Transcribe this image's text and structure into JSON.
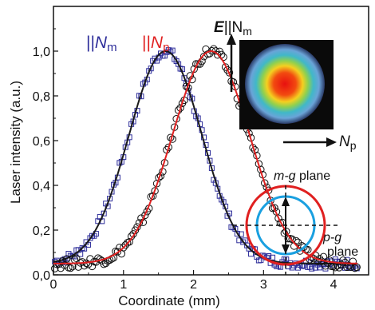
{
  "chart_data": {
    "type": "scatter",
    "xlabel": "Coordinate (mm)",
    "ylabel": "Laser intensity (a.u.)",
    "xlim": [
      0,
      4.5
    ],
    "ylim": [
      0,
      1.2
    ],
    "xticks": [
      "0",
      "1",
      "2",
      "3",
      "4"
    ],
    "yticks": [
      "0,0",
      "0,2",
      "0,4",
      "0,6",
      "0,8",
      "1,0"
    ],
    "grid": false,
    "series": [
      {
        "name": "||Nm",
        "color": "#2e2e9a",
        "marker": "open-square",
        "fit_color": "#1a1a1a",
        "center": 1.6,
        "sigma": 0.52,
        "peak": 1.0,
        "baseline": 0.05
      },
      {
        "name": "||Np",
        "color": "#e02020",
        "marker": "open-circle",
        "fit_color": "#e02020",
        "center": 2.25,
        "sigma": 0.55,
        "peak": 1.0,
        "baseline": 0.05
      }
    ],
    "legend": {
      "nm_prefix": "||",
      "nm_letter": "N",
      "nm_sub": "m",
      "np_prefix": "||",
      "np_letter": "N",
      "np_sub": "p"
    }
  },
  "inset": {
    "e_label_bold": "E",
    "e_label_rest": "||N",
    "e_label_sub": "m",
    "np_letter": "N",
    "np_sub": "p",
    "mg_plane_italic": "m-g",
    "mg_plane_rest": " plane",
    "pg_plane_italic": "p-g",
    "pg_plane_rest": "plane",
    "outer_circle_color": "#e02020",
    "inner_circle_color": "#1aa0e0"
  }
}
